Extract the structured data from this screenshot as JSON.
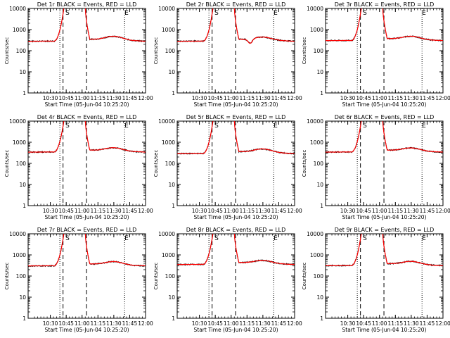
{
  "chart_data": {
    "type": "line",
    "shared": {
      "ylabel": "Counts/sec",
      "xlabel": "Start Time (05-Jun-04 10:25:20)",
      "x_range_min": [
        10.15,
        12.0
      ],
      "x_ticks_min": [
        10.5,
        10.75,
        11.0,
        11.25,
        11.5,
        11.75,
        12.0
      ],
      "x_tick_labels": [
        "10:30",
        "10:45",
        "11:00",
        "11:15",
        "11:30",
        "11:45",
        "12:00"
      ],
      "y_log_range": [
        1,
        10000
      ],
      "y_ticks": [
        1,
        10,
        100,
        1000,
        10000
      ],
      "y_tick_labels": [
        "1",
        "10",
        "100",
        "1000",
        "10000"
      ],
      "series_colors": {
        "events": "#000000",
        "lld": "#ff0000"
      },
      "marker_S": "S",
      "marker_E": "E",
      "dashed_lines_min": [
        10.7,
        11.07
      ],
      "dotted_lines_min": [
        10.65,
        11.67
      ]
    },
    "panels": [
      {
        "title": "Det 1r BLACK = Events, RED = LLD",
        "base": 280,
        "bump": 160,
        "dip": 0
      },
      {
        "title": "Det 2r BLACK = Events, RED = LLD",
        "base": 280,
        "bump": 120,
        "dip": 0.4
      },
      {
        "title": "Det 3r BLACK = Events, RED = LLD",
        "base": 300,
        "bump": 140,
        "dip": 0
      },
      {
        "title": "Det 4r BLACK = Events, RED = LLD",
        "base": 340,
        "bump": 160,
        "dip": 0
      },
      {
        "title": "Det 5r BLACK = Events, RED = LLD",
        "base": 290,
        "bump": 150,
        "dip": 0
      },
      {
        "title": "Det 6r BLACK = Events, RED = LLD",
        "base": 340,
        "bump": 150,
        "dip": 0
      },
      {
        "title": "Det 7r BLACK = Events, RED = LLD",
        "base": 300,
        "bump": 140,
        "dip": 0
      },
      {
        "title": "Det 8r BLACK = Events, RED = LLD",
        "base": 350,
        "bump": 150,
        "dip": 0
      },
      {
        "title": "Det 9r BLACK = Events, RED = LLD",
        "base": 310,
        "bump": 140,
        "dip": 0
      }
    ]
  }
}
